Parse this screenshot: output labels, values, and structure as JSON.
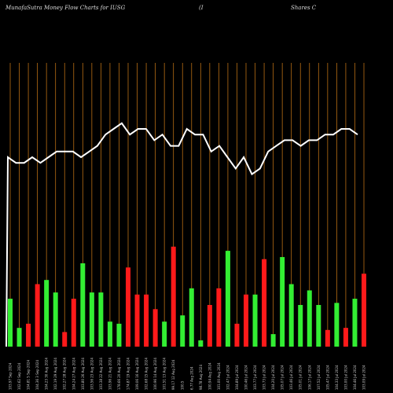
{
  "header": {
    "title": "MunafaSutra  Money Flow  Charts for IUSG",
    "ticker_fragment": "(I",
    "company_fragment": "Shares C"
  },
  "colors": {
    "background": "#000000",
    "gridline": "#b86e14",
    "price_line": "#ffffff",
    "up": "#33ee33",
    "down": "#ff1a1a",
    "label": "#cfcfcf"
  },
  "chart_data": {
    "type": "bar",
    "title": "MunafaSutra  Money Flow  Charts for IUSG",
    "grid": true,
    "ylim": [
      0,
      100
    ],
    "price_line": [
      70,
      69,
      69,
      70,
      69,
      70,
      71,
      71,
      71,
      70,
      71,
      72,
      74,
      75,
      76,
      74,
      75,
      75,
      73,
      74,
      72,
      72,
      75,
      74,
      74,
      71,
      72,
      70,
      68,
      70,
      67,
      68,
      71,
      72,
      73,
      73,
      72,
      73,
      73,
      74,
      74,
      75,
      75,
      74
    ],
    "price_start": 16,
    "values": [
      23,
      9,
      11,
      30,
      32,
      26,
      7,
      23,
      40,
      26,
      26,
      12,
      11,
      38,
      25,
      25,
      18,
      12,
      48,
      15,
      28,
      3,
      20,
      28,
      46,
      11,
      25,
      25,
      42,
      6,
      43,
      30,
      20,
      27,
      20,
      8,
      21,
      9,
      23,
      35
    ],
    "colors": [
      "up",
      "up",
      "down",
      "down",
      "up",
      "up",
      "down",
      "down",
      "up",
      "up",
      "up",
      "up",
      "up",
      "down",
      "down",
      "down",
      "down",
      "up",
      "down",
      "up",
      "up",
      "up",
      "down",
      "down",
      "up",
      "down",
      "down",
      "up",
      "down",
      "up",
      "up",
      "up",
      "up",
      "up",
      "up",
      "down",
      "up",
      "down",
      "up",
      "down"
    ],
    "categories": [
      "103.97 Sep 2024",
      "102.62 Sep 2024",
      "104.81 5 Sep 2024",
      "104.36 3 Sep 2024",
      "104.23 30 Aug 2024",
      "102.19 29 Aug 2024",
      "102.27 28 Aug 2024",
      "104.24 27 Aug 2024",
      "103.80 26 Aug 2024",
      "103.56 23 Aug 2024",
      "103.38 22 Aug 2024",
      "103.96 21 Aug 2024",
      "178.66 20 Aug 2024",
      "174.87 19 Aug 2024",
      "109.06 16 Aug 2024",
      "102.68 15 Aug 2024",
      "100.96 14 Aug 2024",
      "101.51 13 Aug 2024",
      "99.17 12 Aug 2024",
      "100.5",
      "6.77 Aug 2024",
      "98.78 Aug 2024",
      "100.94 Aug 2024",
      "101.00 Aug 2024",
      "102.47 Jul 2024",
      "104.89 Jul 2024",
      "100.46 Jul 2024",
      "103.77 Jul 2024",
      "103.73 Jul 2024",
      "104.20 Jul 2024",
      "105.07 Jul 2024",
      "103.46 Jul 2024",
      "105.01 Jul 2024",
      "106.17 Jul 2024",
      "107.52 Jul 2024",
      "105.47 Jul 2024",
      "104.33 Jul 2024",
      "103.00 Jul 2024",
      "104.46 Jul 2024",
      "103.09 Jul 2024"
    ]
  }
}
